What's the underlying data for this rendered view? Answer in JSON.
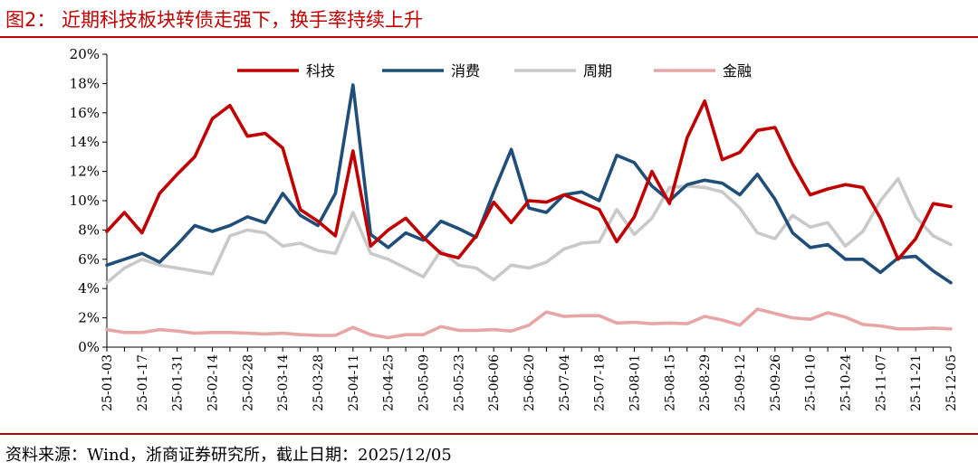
{
  "header": {
    "title": "图2：  近期科技板块转债走强下，换手率持续上升"
  },
  "footer": {
    "source": "资料来源：Wind，浙商证券研究所，截止日期：2025/12/05"
  },
  "chart_data": {
    "type": "line",
    "title": "",
    "xlabel": "",
    "ylabel": "",
    "ylim": [
      0,
      20
    ],
    "yticks": [
      "0%",
      "2%",
      "4%",
      "6%",
      "8%",
      "10%",
      "12%",
      "14%",
      "16%",
      "18%",
      "20%"
    ],
    "grid": false,
    "legend_position": "top",
    "x_tick_labels": [
      "25-01-03",
      "25-01-17",
      "25-01-31",
      "25-02-14",
      "25-02-28",
      "25-03-14",
      "25-03-28",
      "25-04-11",
      "25-04-25",
      "25-05-09",
      "25-05-23",
      "25-06-06",
      "25-06-20",
      "25-07-04",
      "25-07-18",
      "25-08-01",
      "25-08-15",
      "25-08-29",
      "25-09-12",
      "25-09-26",
      "25-10-10",
      "25-10-24",
      "25-11-07",
      "25-11-21",
      "25-12-05"
    ],
    "x": [
      "25-01-03",
      "25-01-10",
      "25-01-17",
      "25-01-24",
      "25-01-31",
      "25-02-07",
      "25-02-14",
      "25-02-21",
      "25-02-28",
      "25-03-07",
      "25-03-14",
      "25-03-21",
      "25-03-28",
      "25-04-04",
      "25-04-11",
      "25-04-18",
      "25-04-25",
      "25-05-02",
      "25-05-09",
      "25-05-16",
      "25-05-23",
      "25-05-30",
      "25-06-06",
      "25-06-13",
      "25-06-20",
      "25-06-27",
      "25-07-04",
      "25-07-11",
      "25-07-18",
      "25-07-25",
      "25-08-01",
      "25-08-08",
      "25-08-15",
      "25-08-22",
      "25-08-29",
      "25-09-05",
      "25-09-12",
      "25-09-19",
      "25-09-26",
      "25-10-03",
      "25-10-10",
      "25-10-17",
      "25-10-24",
      "25-10-31",
      "25-11-07",
      "25-11-14",
      "25-11-21",
      "25-11-28",
      "25-12-05"
    ],
    "series": [
      {
        "name": "科技",
        "color": "#c00000",
        "values": [
          7.9,
          9.2,
          7.8,
          10.5,
          11.8,
          13.0,
          15.6,
          16.5,
          14.4,
          14.6,
          13.6,
          9.4,
          8.6,
          7.6,
          13.4,
          6.9,
          8.0,
          8.8,
          7.5,
          6.4,
          6.1,
          7.6,
          9.9,
          8.5,
          10.0,
          9.9,
          10.4,
          9.9,
          9.4,
          7.2,
          8.9,
          12.0,
          9.8,
          14.3,
          16.8,
          12.8,
          13.3,
          14.8,
          15.0,
          12.5,
          10.4,
          10.8,
          11.1,
          10.9,
          8.8,
          6.0,
          7.4,
          9.8,
          9.6
        ]
      },
      {
        "name": "消费",
        "color": "#1f4e79",
        "values": [
          5.6,
          6.0,
          6.4,
          5.8,
          7.0,
          8.3,
          7.9,
          8.3,
          8.9,
          8.5,
          10.5,
          9.0,
          8.3,
          10.5,
          17.9,
          7.7,
          6.8,
          7.8,
          7.3,
          8.6,
          8.1,
          7.5,
          10.6,
          13.5,
          9.5,
          9.2,
          10.4,
          10.6,
          10.0,
          13.1,
          12.6,
          11.0,
          10.0,
          11.1,
          11.4,
          11.2,
          10.4,
          11.8,
          10.1,
          7.8,
          6.8,
          7.0,
          6.0,
          6.0,
          5.1,
          6.1,
          6.2,
          5.2,
          4.4
        ]
      },
      {
        "name": "周期",
        "color": "#c9c9c9",
        "values": [
          4.4,
          5.4,
          6.0,
          5.6,
          5.4,
          5.2,
          5.0,
          7.6,
          8.0,
          7.8,
          6.9,
          7.1,
          6.6,
          6.4,
          9.2,
          6.4,
          6.0,
          5.4,
          4.8,
          6.6,
          5.6,
          5.4,
          4.6,
          5.6,
          5.4,
          5.8,
          6.7,
          7.1,
          7.2,
          9.4,
          7.7,
          8.8,
          10.9,
          11.0,
          10.9,
          10.6,
          9.5,
          7.8,
          7.4,
          9.0,
          8.2,
          8.5,
          6.9,
          7.9,
          10.0,
          11.5,
          8.9,
          7.6,
          7.0
        ]
      },
      {
        "name": "金融",
        "color": "#e8a5a5",
        "values": [
          1.2,
          1.0,
          1.0,
          1.2,
          1.1,
          0.95,
          1.0,
          1.0,
          0.95,
          0.9,
          0.95,
          0.85,
          0.8,
          0.8,
          1.35,
          0.85,
          0.65,
          0.85,
          0.85,
          1.4,
          1.15,
          1.15,
          1.2,
          1.1,
          1.5,
          2.4,
          2.1,
          2.15,
          2.15,
          1.65,
          1.7,
          1.6,
          1.65,
          1.6,
          2.1,
          1.85,
          1.5,
          2.6,
          2.3,
          2.0,
          1.9,
          2.35,
          2.05,
          1.55,
          1.45,
          1.25,
          1.25,
          1.3,
          1.25
        ]
      }
    ]
  }
}
